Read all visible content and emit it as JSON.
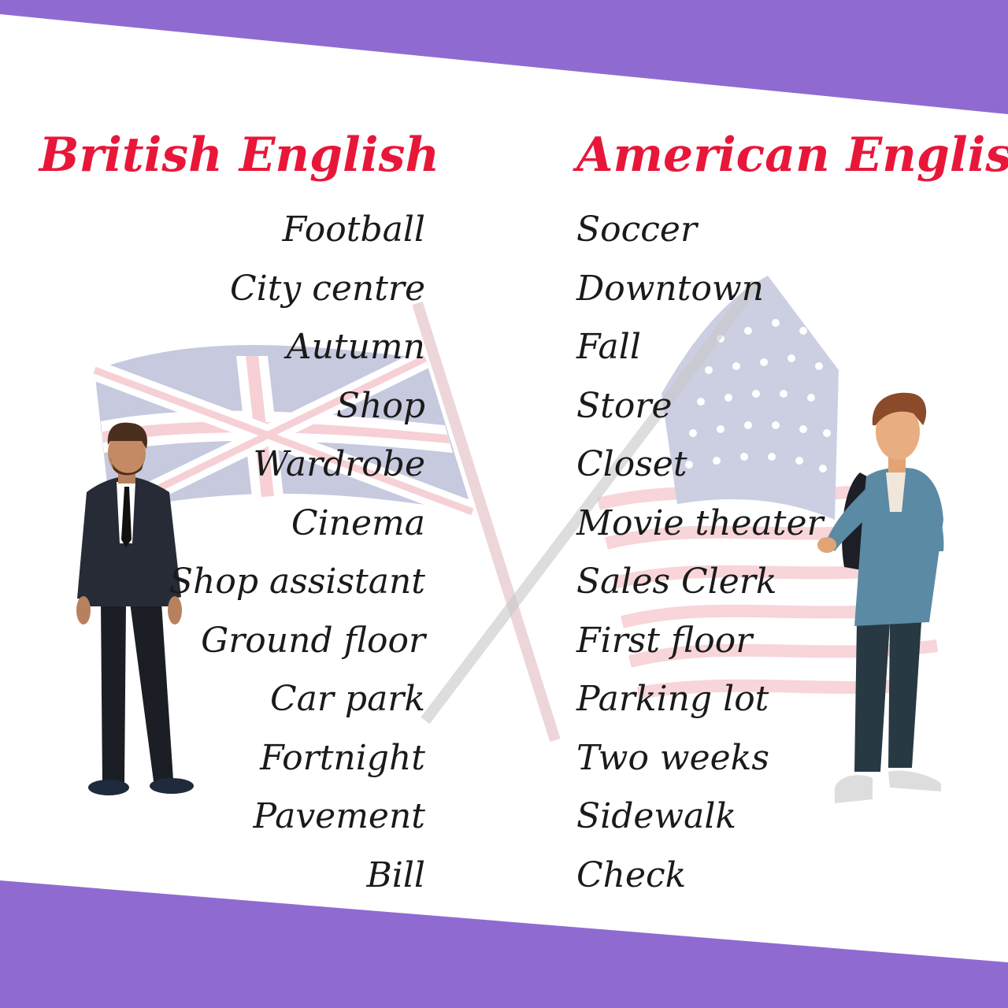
{
  "colors": {
    "band": "#8f6bd1",
    "heading": "#e8173a",
    "text": "#1a1a1a",
    "background": "#ffffff"
  },
  "headings": {
    "british": "British English",
    "american": "American English"
  },
  "pairs": [
    {
      "british": "Football",
      "american": "Soccer"
    },
    {
      "british": "City centre",
      "american": "Downtown"
    },
    {
      "british": "Autumn",
      "american": "Fall"
    },
    {
      "british": "Shop",
      "american": "Store"
    },
    {
      "british": "Wardrobe",
      "american": "Closet"
    },
    {
      "british": "Cinema",
      "american": "Movie theater"
    },
    {
      "british": "Shop assistant",
      "american": "Sales Clerk"
    },
    {
      "british": "Ground floor",
      "american": "First floor"
    },
    {
      "british": "Car park",
      "american": "Parking lot"
    },
    {
      "british": "Fortnight",
      "american": "Two weeks"
    },
    {
      "british": "Pavement",
      "american": "Sidewalk"
    },
    {
      "british": "Bill",
      "american": "Check"
    }
  ],
  "illustrations": {
    "uk_flag": "union-jack-flag-illustration",
    "us_flag": "stars-and-stripes-flag-illustration",
    "left_person": "man-in-suit-illustration",
    "right_person": "young-man-with-backpack-illustration"
  }
}
